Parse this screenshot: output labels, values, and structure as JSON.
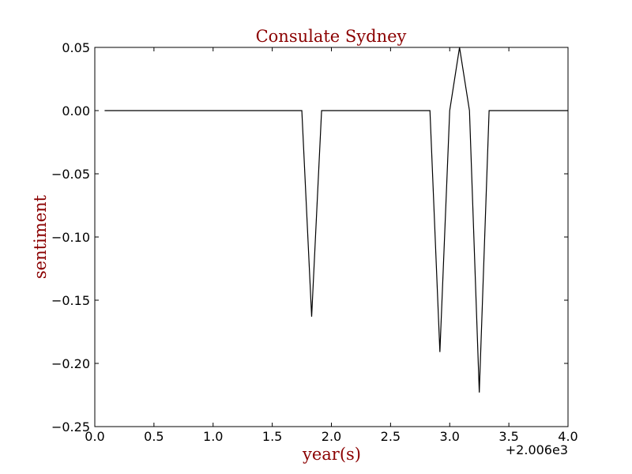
{
  "chart_data": {
    "type": "line",
    "title": "Consulate Sydney",
    "xlabel": "year(s)",
    "ylabel": "sentiment",
    "x_offset_label": "+2.006e3",
    "xlim": [
      0.0,
      4.0
    ],
    "ylim": [
      -0.25,
      0.05
    ],
    "x_ticks": [
      0.0,
      0.5,
      1.0,
      1.5,
      2.0,
      2.5,
      3.0,
      3.5,
      4.0
    ],
    "x_tick_labels": [
      "0.0",
      "0.5",
      "1.0",
      "1.5",
      "2.0",
      "2.5",
      "3.0",
      "3.5",
      "4.0"
    ],
    "y_ticks": [
      0.05,
      0.0,
      -0.05,
      -0.1,
      -0.15,
      -0.2,
      -0.25
    ],
    "y_tick_labels": [
      "0.05",
      "0.00",
      "−0.05",
      "−0.10",
      "−0.15",
      "−0.20",
      "−0.25"
    ],
    "grid": false,
    "legend": "none",
    "colors": {
      "line": "#000000",
      "title": "#8b0000",
      "axis_label": "#8b0000",
      "frame": "#000000"
    },
    "series": [
      {
        "x": [
          0.083,
          1.75,
          1.833,
          1.917,
          2.833,
          2.917,
          3.0,
          3.083,
          3.167,
          3.25,
          3.333,
          4.0
        ],
        "y": [
          0.0,
          0.0,
          -0.163,
          0.0,
          0.0,
          -0.191,
          0.0,
          0.05,
          0.0,
          -0.223,
          0.0,
          0.0
        ]
      }
    ]
  }
}
